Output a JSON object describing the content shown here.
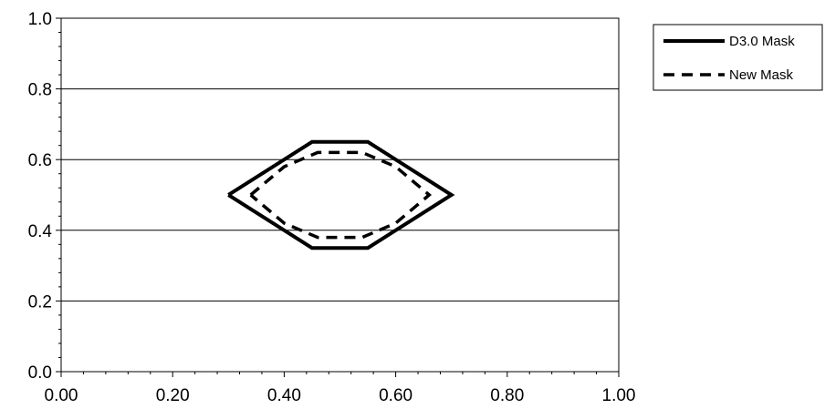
{
  "chart_data": {
    "type": "line",
    "title": "",
    "xlabel": "",
    "ylabel": "",
    "xlim": [
      0,
      1
    ],
    "ylim": [
      0,
      1
    ],
    "x_ticks": [
      "0.00",
      "0.20",
      "0.40",
      "0.60",
      "0.80",
      "1.00"
    ],
    "y_ticks": [
      "0.0",
      "0.2",
      "0.4",
      "0.6",
      "0.8",
      "1.0"
    ],
    "grid": "horizontal",
    "legend_position": "right",
    "series": [
      {
        "name": "D3.0 Mask",
        "style": "solid",
        "color": "#000000",
        "points": [
          [
            0.3,
            0.5
          ],
          [
            0.4,
            0.6
          ],
          [
            0.45,
            0.65
          ],
          [
            0.55,
            0.65
          ],
          [
            0.6,
            0.6
          ],
          [
            0.7,
            0.5
          ],
          [
            0.6,
            0.4
          ],
          [
            0.55,
            0.35
          ],
          [
            0.45,
            0.35
          ],
          [
            0.4,
            0.4
          ],
          [
            0.3,
            0.5
          ]
        ]
      },
      {
        "name": "New Mask",
        "style": "dashed",
        "color": "#000000",
        "points": [
          [
            0.34,
            0.5
          ],
          [
            0.4,
            0.58
          ],
          [
            0.46,
            0.62
          ],
          [
            0.54,
            0.62
          ],
          [
            0.6,
            0.58
          ],
          [
            0.66,
            0.5
          ],
          [
            0.6,
            0.42
          ],
          [
            0.54,
            0.38
          ],
          [
            0.46,
            0.38
          ],
          [
            0.4,
            0.42
          ],
          [
            0.34,
            0.5
          ]
        ]
      }
    ]
  }
}
